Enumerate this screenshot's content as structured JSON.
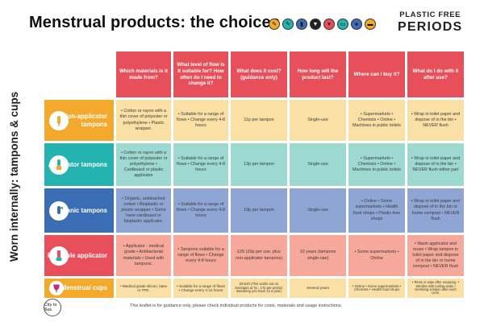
{
  "title": "Menstrual products: the choices",
  "brand": {
    "line1": "PLASTIC FREE",
    "line2": "PERIODS"
  },
  "side_label": "Worn internally: tampons & cups",
  "headers": [
    "Which materials is it made from?",
    "What level of flow is it suitable for? How often do I need to change it?",
    "What does it cost? (guidance only)",
    "How long will the product last?",
    "Where can I buy it?",
    "What do I do with it after use?"
  ],
  "rows": [
    {
      "label": "Non-applicator tampons",
      "icon": "tampon-icon",
      "cells": [
        "• Cotton or rayon with a thin cover of polyester or polyethylene • Plastic wrapper.",
        "• Suitable for a range of flows • Change every 4-8 hours",
        "11p per tampon",
        "Single-use",
        "• Supermarkets • Chemists • Online • Machines in public toilets",
        "• Wrap in toilet paper and dispose of in the bin • NEVER flush"
      ]
    },
    {
      "label": "Applicator tampons",
      "icon": "applicator-tampon-icon",
      "cells": [
        "• Cotton or rayon with a thin cover of polyester or polyethylene • Cardboard or plastic applicator",
        "• Suitable for a range of flows • Change every 4-8 hours",
        "13p per tampon",
        "Single-use",
        "• Supermarkets • Chemists • Online • Machines in public toilets",
        "• Wrap in toilet paper and dispose of in the bin • NEVER flush either part"
      ]
    },
    {
      "label": "Organic tampons",
      "icon": "organic-tampon-icon",
      "cells": [
        "• Organic, unbleached cotton • Bioplastic or plastic wrapper • Some have cardboard or bioplastic applicator.",
        "• Suitable for a range of flows • Change every 4-8 hours",
        "19p per tampon",
        "Single-use",
        "• Online • Some supermarkets • Health food shops • Plastic-free shops",
        "• Wrap in toilet paper and dispose of in the bin or home compost • NEVER flush"
      ]
    },
    {
      "label": "Reusable applicator",
      "icon": "reusable-applicator-icon",
      "cells": [
        "• Applicator - medical grade • Antibacterial materials • Used with tampons.",
        "• Tampons suitable for a range of flows • Change every 4-8 hours",
        "£25 (20p per use, plus non-applicator tampons)",
        "10 years (tampons single-use)",
        "• Some supermarkets • Online",
        "• Wash applicator and reuse • Wrap tampon in toilet paper and dispose of in the bin or home compost • NEVER flush"
      ]
    },
    {
      "label": "Menstrual cups",
      "icon": "menstrual-cup-icon",
      "cells": [
        "• Medical grade silicon, latex or TPE.",
        "• Suitable for a range of flows • Change every 4-12 hours",
        "£9-£20 (This works out on averages at 7p - 17p per period, assuming you have 12 a year)",
        "Several years",
        "• Online • Some supermarkets • Chemists • Health food shops",
        "• Rinse or wipe after emptying. • Sterilise with boiling water / sterilising solution after each cycle."
      ]
    }
  ],
  "footer": "This leaflet is for guidance only, please check individual products for costs, materials and usage instructions.",
  "logo_text": "City to Sea",
  "colors": {
    "header": "#e7505a",
    "label_0": "#f2a92c",
    "cell_0": "#fbe0a6",
    "label_1": "#24b3ae",
    "cell_1": "#9dd9d1",
    "label_2": "#3a6db4",
    "cell_2": "#8fa6d4",
    "label_3": "#e7505a",
    "cell_3": "#f6a99a",
    "label_4": "#f2a92c",
    "cell_4": "#fbe0a6"
  }
}
